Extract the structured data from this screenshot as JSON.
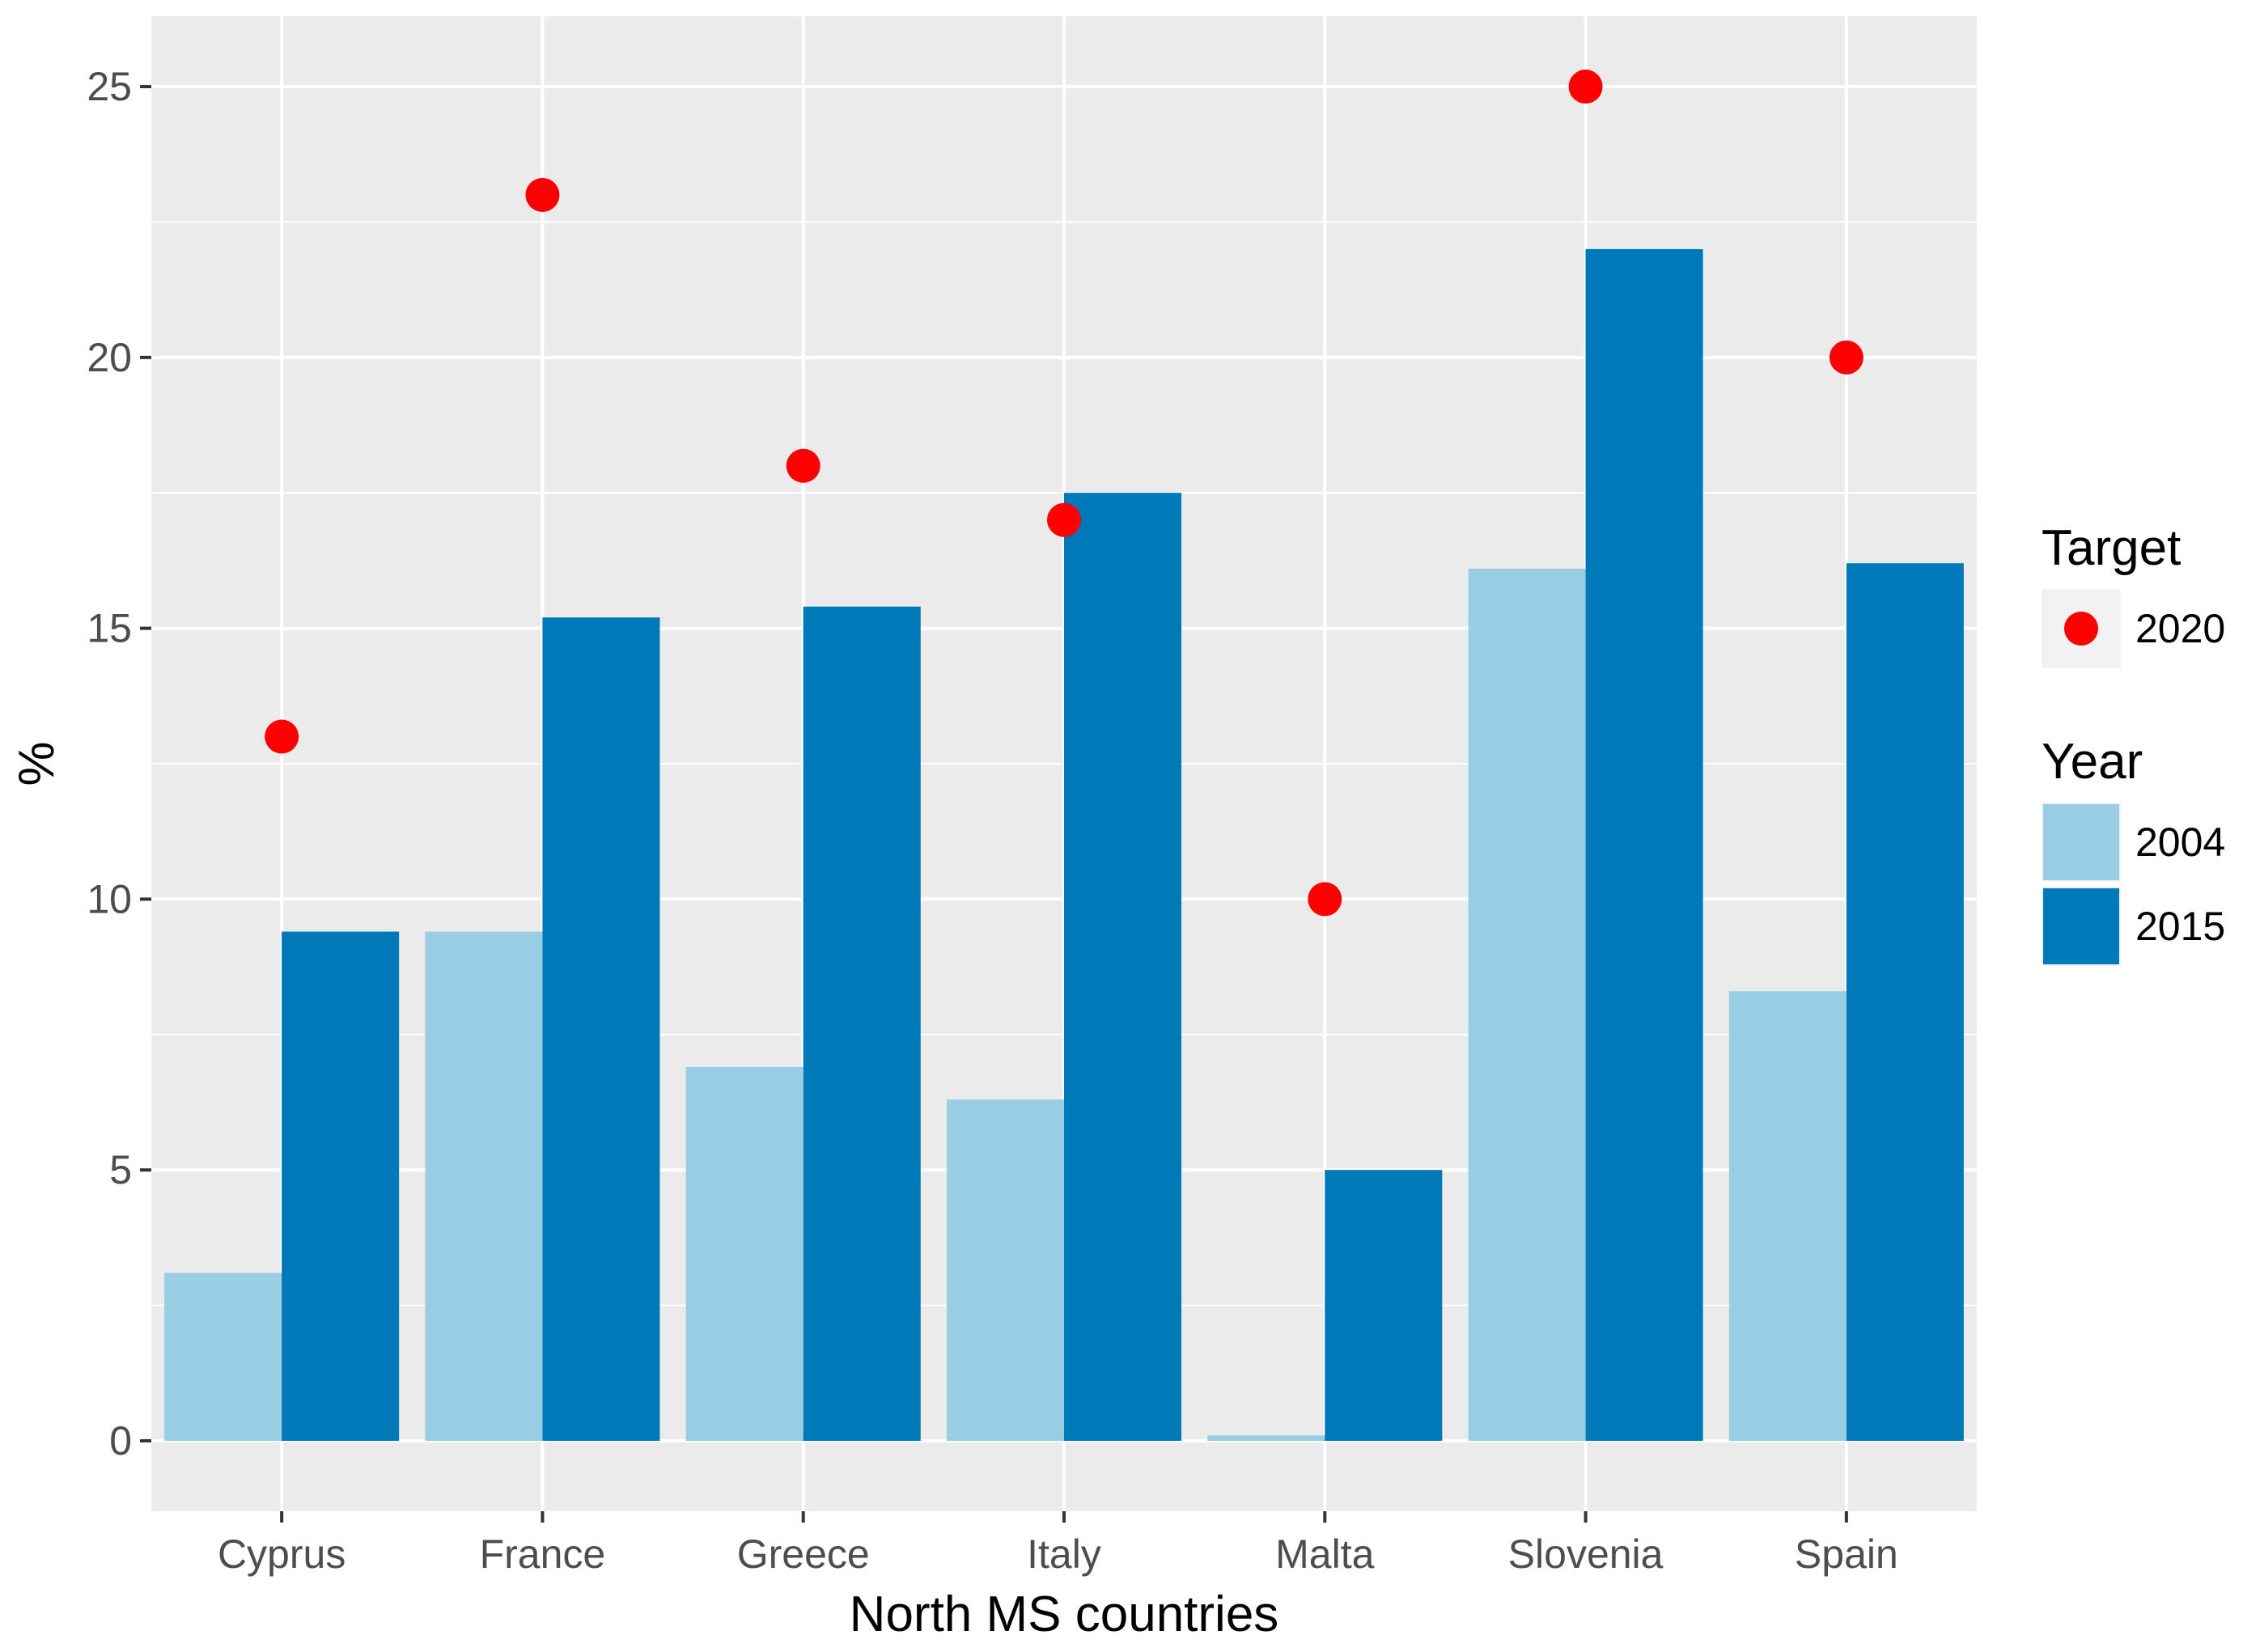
{
  "chart_data": {
    "type": "bar",
    "xlabel": "North MS countries",
    "ylabel": "%",
    "ylim": [
      -1.3,
      26.3
    ],
    "yticks": [
      0,
      5,
      10,
      15,
      20,
      25
    ],
    "grid": true,
    "legend_placement": "right",
    "categories": [
      "Cyprus",
      "France",
      "Greece",
      "Italy",
      "Malta",
      "Slovenia",
      "Spain"
    ],
    "series": [
      {
        "name": "2004",
        "legend": "Year",
        "color": "#98cde4",
        "values": [
          3.1,
          9.4,
          6.9,
          6.3,
          0.1,
          16.1,
          8.3
        ]
      },
      {
        "name": "2015",
        "legend": "Year",
        "color": "#0079b9",
        "values": [
          9.4,
          15.2,
          15.4,
          17.5,
          5.0,
          22.0,
          16.2
        ]
      }
    ],
    "points": {
      "name": "2020",
      "legend": "Target",
      "color": "#ff0000",
      "values": [
        13,
        23,
        18,
        17,
        10,
        25,
        20
      ]
    },
    "legends": [
      {
        "title": "Target",
        "entries": [
          {
            "label": "2020",
            "kind": "point",
            "color": "#ff0000"
          }
        ]
      },
      {
        "title": "Year",
        "entries": [
          {
            "label": "2004",
            "kind": "fill",
            "color": "#98cde4"
          },
          {
            "label": "2015",
            "kind": "fill",
            "color": "#0079b9"
          }
        ]
      }
    ]
  }
}
